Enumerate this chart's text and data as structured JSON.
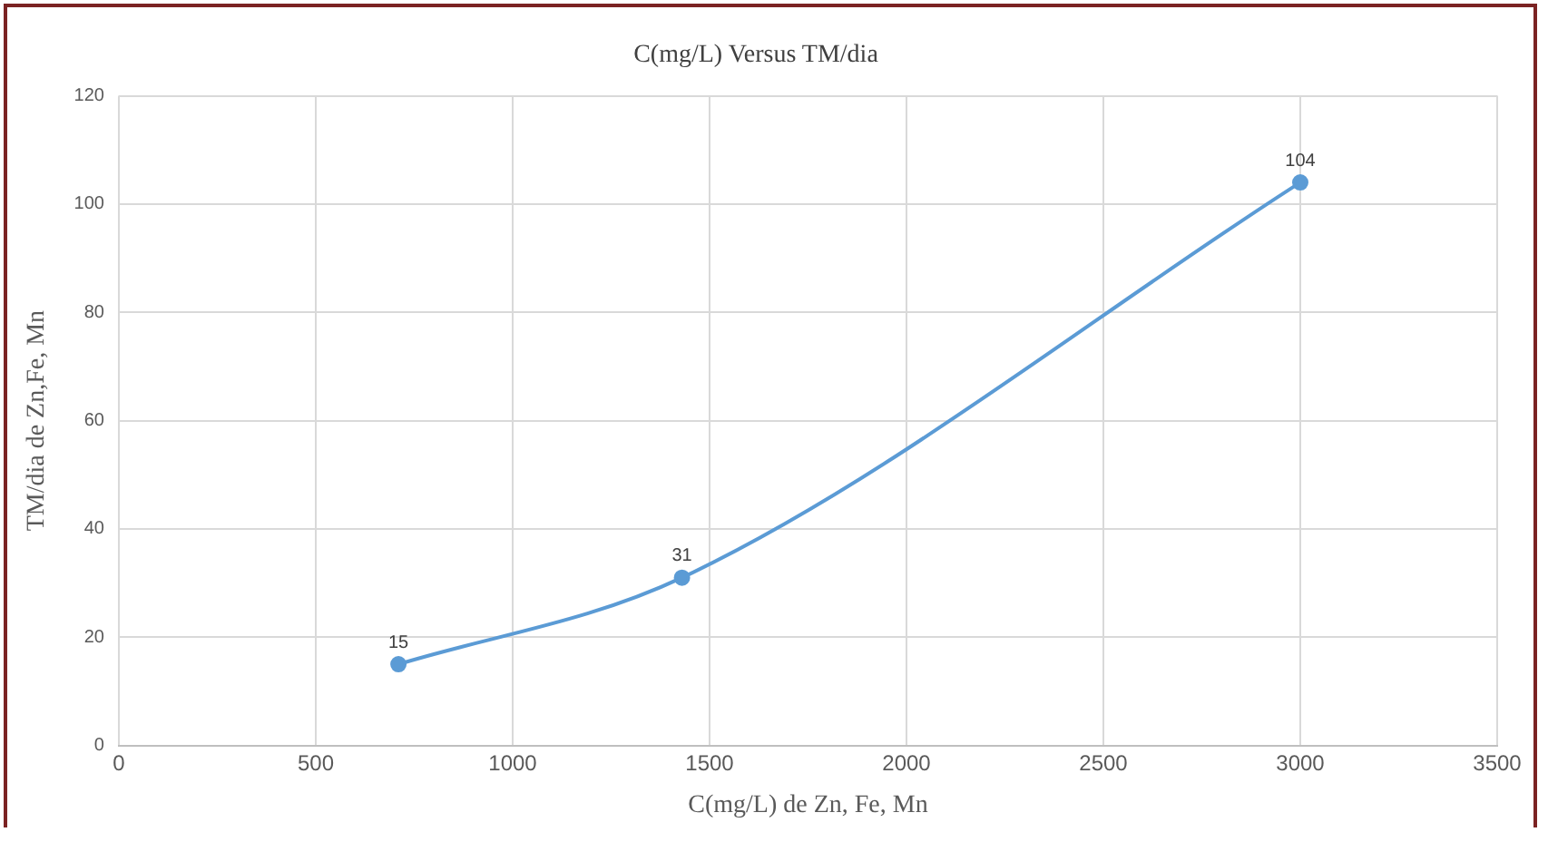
{
  "chart_data": {
    "type": "line",
    "title": "C(mg/L) Versus TM/dia",
    "xlabel": "C(mg/L) de Zn, Fe, Mn",
    "ylabel": "TM/dia de Zn,Fe, Mn",
    "x": [
      710,
      1430,
      3000
    ],
    "series": [
      {
        "color": "#5b9bd5",
        "values": [
          15,
          31,
          104
        ]
      }
    ],
    "xlim": [
      0,
      3500
    ],
    "xticks": [
      0,
      500,
      1000,
      1500,
      2000,
      2500,
      3000,
      3500
    ],
    "ylim": [
      0,
      120
    ],
    "yticks": [
      0,
      20,
      40,
      60,
      80,
      100,
      120
    ],
    "grid": true,
    "marker": "circle",
    "line_style": "solid",
    "data_labels": true,
    "legend": false
  }
}
